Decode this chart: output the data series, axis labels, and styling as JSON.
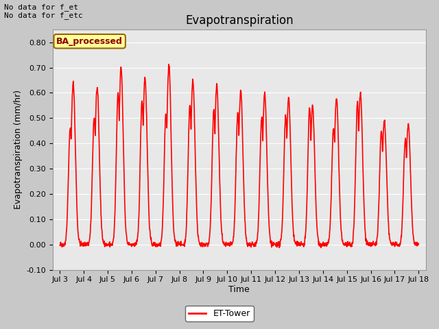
{
  "title": "Evapotranspiration",
  "ylabel": "Evapotranspiration (mm/hr)",
  "xlabel": "Time",
  "ylim": [
    -0.1,
    0.85
  ],
  "yticks": [
    -0.1,
    0.0,
    0.1,
    0.2,
    0.3,
    0.4,
    0.5,
    0.6,
    0.7,
    0.8
  ],
  "line_color": "red",
  "line_width": 1.2,
  "plot_bg_color": "#e8e8e8",
  "fig_bg_color": "#c8c8c8",
  "annotation_top_left": "No data for f_et\nNo data for f_etc",
  "box_label": "BA_processed",
  "box_facecolor": "#ffff99",
  "box_edgecolor": "#996600",
  "legend_label": "ET-Tower",
  "x_tick_labels": [
    "Jul 3",
    "Jul 4",
    "Jul 5",
    "Jul 6",
    "Jul 7",
    "Jul 8",
    "Jul 9",
    "Jul 10",
    "Jul 11",
    "Jul 12",
    "Jul 13",
    "Jul 14",
    "Jul 15",
    "Jul 16",
    "Jul 17",
    "Jul 18"
  ],
  "title_fontsize": 12,
  "axis_fontsize": 9,
  "tick_fontsize": 8,
  "daily_peaks": [
    0.64,
    0.62,
    0.7,
    0.66,
    0.71,
    0.65,
    0.63,
    0.61,
    0.6,
    0.58,
    0.55,
    0.58,
    0.6,
    0.49,
    0.48
  ],
  "daily_peaks2": [
    0.46,
    0.5,
    0.6,
    0.57,
    0.52,
    0.55,
    0.53,
    0.52,
    0.5,
    0.51,
    0.54,
    0.46,
    0.56,
    0.45,
    0.42
  ]
}
